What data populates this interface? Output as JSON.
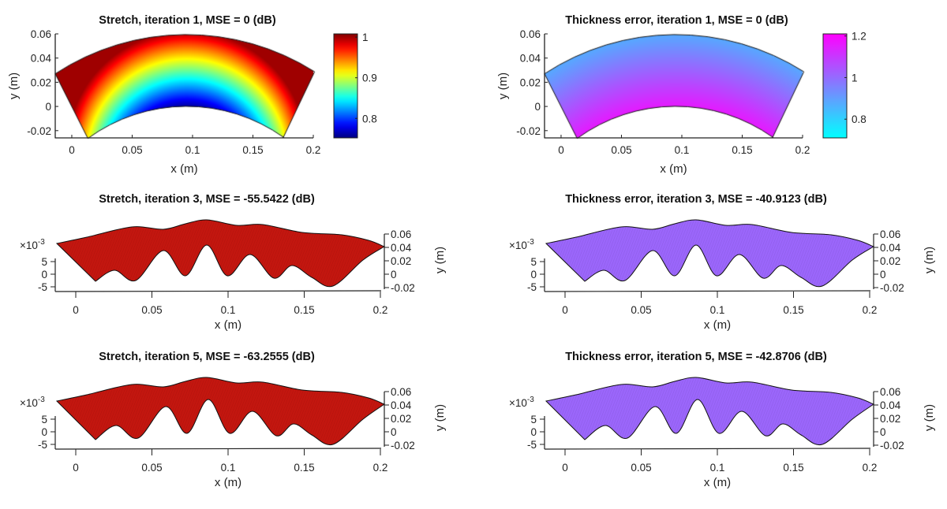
{
  "chart_data": [
    {
      "type": "heatmap",
      "title": "Stretch, iteration 1, MSE = 0 (dB)",
      "xlabel": "x (m)",
      "ylabel": "y (m)",
      "xticks": [
        "0",
        "0.05",
        "0.1",
        "0.15",
        "0.2"
      ],
      "yticks": [
        "0.06",
        "0.04",
        "0.02",
        "0",
        "-0.02"
      ],
      "xlim": [
        -0.0137,
        0.2
      ],
      "ylim": [
        -0.026,
        0.06
      ],
      "colorbar": {
        "colormap": "jet",
        "clim": [
          0.752,
          1.008
        ],
        "ticks": [
          "1",
          "0.9",
          "0.8"
        ]
      }
    },
    {
      "type": "heatmap",
      "title": "Thickness error, iteration 1, MSE = 0 (dB)",
      "xlabel": "x (m)",
      "ylabel": "y (m)",
      "xticks": [
        "0",
        "0.05",
        "0.1",
        "0.15",
        "0.2"
      ],
      "yticks": [
        "0.06",
        "0.04",
        "0.02",
        "0",
        "-0.02"
      ],
      "xlim": [
        -0.0137,
        0.2
      ],
      "ylim": [
        -0.026,
        0.06
      ],
      "colorbar": {
        "colormap": "cool",
        "clim": [
          0.71,
          1.21
        ],
        "ticks": [
          "1.2",
          "1",
          "0.8"
        ]
      }
    },
    {
      "type": "surface",
      "title": "Stretch, iteration 3, MSE = -55.5422 (dB)",
      "xlabel": "x (m)",
      "ylabel": "y (m)",
      "xticks": [
        "0",
        "0.05",
        "0.1",
        "0.15",
        "0.2"
      ],
      "yticks": [
        "0.06",
        "0.04",
        "0.02",
        "0",
        "-0.02"
      ],
      "zticks": [
        "5",
        "0",
        "-5"
      ],
      "zexponent": "×10",
      "zexponent_power": "-3",
      "color": "#c3160f"
    },
    {
      "type": "surface",
      "title": "Thickness error, iteration 3, MSE = -40.9123 (dB)",
      "xlabel": "x (m)",
      "ylabel": "y (m)",
      "xticks": [
        "0",
        "0.05",
        "0.1",
        "0.15",
        "0.2"
      ],
      "yticks": [
        "0.06",
        "0.04",
        "0.02",
        "0",
        "-0.02"
      ],
      "zticks": [
        "5",
        "0",
        "-5"
      ],
      "zexponent": "×10",
      "zexponent_power": "-3",
      "color": "#9b66fb"
    },
    {
      "type": "surface",
      "title": "Stretch, iteration 5, MSE = -63.2555 (dB)",
      "xlabel": "x (m)",
      "ylabel": "y (m)",
      "xticks": [
        "0",
        "0.05",
        "0.1",
        "0.15",
        "0.2"
      ],
      "yticks": [
        "0.06",
        "0.04",
        "0.02",
        "0",
        "-0.02"
      ],
      "zticks": [
        "5",
        "0",
        "-5"
      ],
      "zexponent": "×10",
      "zexponent_power": "-3",
      "color": "#c3160f"
    },
    {
      "type": "surface",
      "title": "Thickness error, iteration 5, MSE = -42.8706 (dB)",
      "xlabel": "x (m)",
      "ylabel": "y (m)",
      "xticks": [
        "0",
        "0.05",
        "0.1",
        "0.15",
        "0.2"
      ],
      "yticks": [
        "0.06",
        "0.04",
        "0.02",
        "0",
        "-0.02"
      ],
      "zticks": [
        "5",
        "0",
        "-5"
      ],
      "zexponent": "×10",
      "zexponent_power": "-3",
      "color": "#9b66fb"
    }
  ]
}
